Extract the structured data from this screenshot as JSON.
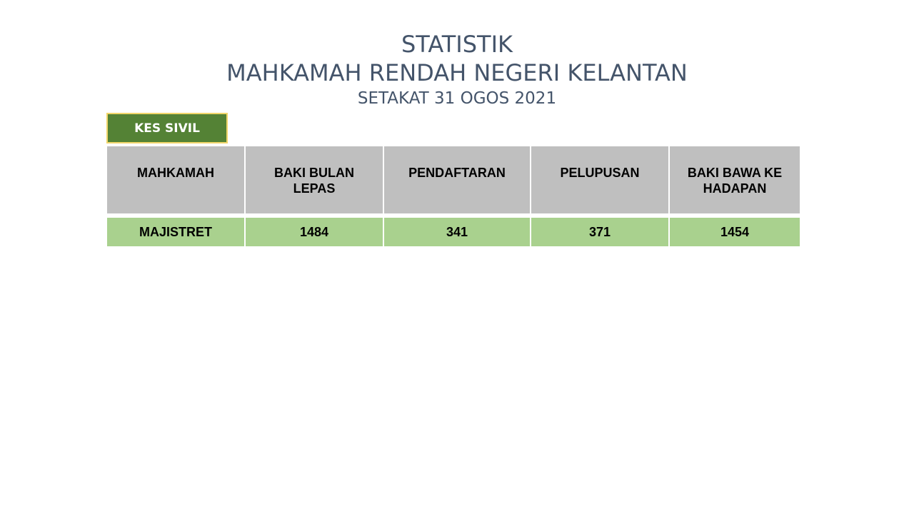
{
  "title": {
    "line1": "STATISTIK",
    "line2": "MAHKAMAH RENDAH NEGERI KELANTAN",
    "line3": "SETAKAT 31 OGOS 2021"
  },
  "tag_label": "KES SIVIL",
  "table": {
    "headers": [
      "MAHKAMAH",
      "BAKI BULAN LEPAS",
      "PENDAFTARAN",
      "PELUPUSAN",
      "BAKI BAWA KE HADAPAN"
    ],
    "rows": [
      [
        "MAJISTRET",
        "1484",
        "341",
        "371",
        "1454"
      ]
    ]
  },
  "colors": {
    "title": "#44546a",
    "tag_background": "#548235",
    "tag_border": "#f2d66b",
    "header_background": "#bfbfbf",
    "row_background": "#a9d18e"
  }
}
